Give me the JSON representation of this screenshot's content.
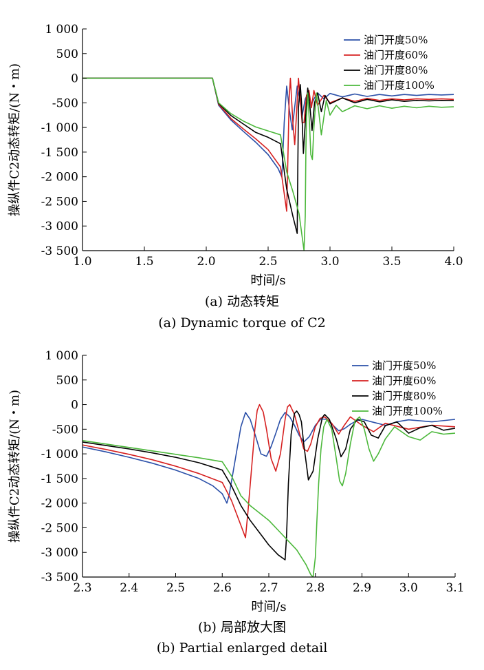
{
  "chart_data": [
    {
      "type": "line",
      "xlabel": "时间/s",
      "ylabel": "操纵件C2动态转矩/(N・m)",
      "caption_cn": "(a) 动态转矩",
      "caption_en": "(a) Dynamic torque of C2",
      "xlim": [
        1.0,
        4.0
      ],
      "ylim": [
        -3500,
        1000
      ],
      "x_ticks": [
        1.0,
        1.5,
        2.0,
        2.5,
        3.0,
        3.5,
        4.0
      ],
      "x_tick_labels": [
        "1.0",
        "1.5",
        "2.0",
        "2.5",
        "3.0",
        "3.5",
        "4.0"
      ],
      "y_ticks": [
        1000,
        500,
        0,
        -500,
        -1000,
        -1500,
        -2000,
        -2500,
        -3000,
        -3500
      ],
      "y_tick_labels": [
        "1 000",
        "500",
        "0",
        "-500",
        "-1 000",
        "-1 500",
        "-2 000",
        "-2 500",
        "-3 000",
        "-3 500"
      ],
      "grid": false,
      "legend_position": "top-right",
      "series": [
        {
          "name": "油门开度50%",
          "color": "#2a4fa8",
          "x": [
            1.0,
            2.05,
            2.1,
            2.2,
            2.3,
            2.4,
            2.5,
            2.58,
            2.61,
            2.615,
            2.63,
            2.65,
            2.672,
            2.695,
            2.715,
            2.735,
            2.755,
            2.775,
            2.8,
            2.825,
            2.85,
            2.875,
            2.9,
            2.95,
            3.0,
            3.1,
            3.2,
            3.3,
            3.4,
            3.5,
            3.6,
            3.7,
            3.8,
            3.9,
            4.0
          ],
          "y": [
            0,
            0,
            -550,
            -850,
            -1080,
            -1300,
            -1550,
            -1830,
            -2000,
            -1800,
            -900,
            -160,
            -650,
            -1050,
            -580,
            -160,
            -420,
            -760,
            -420,
            -300,
            -530,
            -400,
            -300,
            -420,
            -310,
            -380,
            -320,
            -370,
            -330,
            -360,
            -330,
            -350,
            -330,
            -340,
            -330
          ]
        },
        {
          "name": "油门开度60%",
          "color": "#d62020",
          "x": [
            1.0,
            2.05,
            2.1,
            2.2,
            2.3,
            2.4,
            2.5,
            2.6,
            2.65,
            2.66,
            2.67,
            2.68,
            2.7,
            2.715,
            2.73,
            2.745,
            2.76,
            2.775,
            2.79,
            2.81,
            2.83,
            2.85,
            2.87,
            2.9,
            2.95,
            3.0,
            3.1,
            3.2,
            3.3,
            3.4,
            3.5,
            3.6,
            3.7,
            3.8,
            3.9,
            4.0
          ],
          "y": [
            0,
            0,
            -530,
            -820,
            -1030,
            -1230,
            -1450,
            -1800,
            -2700,
            -1600,
            -400,
            0,
            -900,
            -1350,
            -700,
            0,
            -450,
            -900,
            -900,
            -350,
            -250,
            -600,
            -250,
            -550,
            -350,
            -500,
            -400,
            -470,
            -410,
            -450,
            -420,
            -440,
            -420,
            -430,
            -420,
            -430
          ]
        },
        {
          "name": "油门开度80%",
          "color": "#000000",
          "x": [
            1.0,
            2.05,
            2.1,
            2.2,
            2.3,
            2.4,
            2.5,
            2.6,
            2.65,
            2.7,
            2.735,
            2.74,
            2.745,
            2.76,
            2.77,
            2.785,
            2.8,
            2.82,
            2.835,
            2.855,
            2.875,
            2.9,
            2.93,
            2.96,
            3.0,
            3.1,
            3.2,
            3.3,
            3.4,
            3.5,
            3.6,
            3.7,
            3.8,
            3.9,
            4.0
          ],
          "y": [
            0,
            0,
            -510,
            -760,
            -930,
            -1100,
            -1200,
            -1330,
            -2250,
            -2800,
            -3150,
            -1800,
            -600,
            -130,
            -500,
            -1530,
            -900,
            -200,
            -500,
            -1060,
            -500,
            -300,
            -680,
            -350,
            -520,
            -400,
            -500,
            -430,
            -480,
            -440,
            -470,
            -450,
            -460,
            -450,
            -455
          ]
        },
        {
          "name": "油门开度100%",
          "color": "#4cb83b",
          "x": [
            1.0,
            2.05,
            2.1,
            2.2,
            2.3,
            2.4,
            2.5,
            2.6,
            2.65,
            2.7,
            2.75,
            2.79,
            2.8,
            2.805,
            2.81,
            2.82,
            2.835,
            2.845,
            2.858,
            2.87,
            2.89,
            2.91,
            2.93,
            2.95,
            2.97,
            3.0,
            3.05,
            3.1,
            3.2,
            3.3,
            3.4,
            3.5,
            3.6,
            3.7,
            3.8,
            3.9,
            4.0
          ],
          "y": [
            0,
            0,
            -500,
            -720,
            -870,
            -990,
            -1070,
            -1150,
            -1900,
            -2300,
            -2750,
            -3500,
            -2800,
            -1500,
            -800,
            -300,
            -950,
            -1550,
            -1650,
            -1000,
            -300,
            -700,
            -1150,
            -800,
            -450,
            -750,
            -550,
            -680,
            -560,
            -620,
            -560,
            -610,
            -570,
            -600,
            -570,
            -590,
            -580
          ]
        }
      ]
    },
    {
      "type": "line",
      "xlabel": "时间/s",
      "ylabel": "操纵件C2动态转矩/(N・m)",
      "caption_cn": "(b) 局部放大图",
      "caption_en": "(b) Partial enlarged detail",
      "xlim": [
        2.3,
        3.1
      ],
      "ylim": [
        -3500,
        1000
      ],
      "x_ticks": [
        2.3,
        2.4,
        2.5,
        2.6,
        2.7,
        2.8,
        2.9,
        3.0,
        3.1
      ],
      "x_tick_labels": [
        "2.3",
        "2.4",
        "2.5",
        "2.6",
        "2.7",
        "2.8",
        "2.9",
        "3.0",
        "3.1"
      ],
      "y_ticks": [
        1000,
        500,
        0,
        -500,
        -1000,
        -1500,
        -2000,
        -2500,
        -3000,
        -3500
      ],
      "y_tick_labels": [
        "1 000",
        "500",
        "0",
        "-500",
        "-1 000",
        "-1 500",
        "-2 000",
        "-2 500",
        "-3 000",
        "-3 500"
      ],
      "grid": false,
      "legend_position": "top-right",
      "series": [
        {
          "name": "油门开度50%",
          "color": "#2a4fa8",
          "x": [
            2.3,
            2.35,
            2.4,
            2.45,
            2.5,
            2.55,
            2.58,
            2.6,
            2.61,
            2.615,
            2.63,
            2.64,
            2.65,
            2.66,
            2.672,
            2.683,
            2.695,
            2.705,
            2.715,
            2.725,
            2.735,
            2.745,
            2.755,
            2.765,
            2.775,
            2.787,
            2.8,
            2.812,
            2.825,
            2.84,
            2.85,
            2.862,
            2.875,
            2.888,
            2.9,
            2.925,
            2.95,
            2.975,
            3.0,
            3.05,
            3.1
          ],
          "y": [
            -860,
            -960,
            -1070,
            -1190,
            -1330,
            -1500,
            -1650,
            -1810,
            -2000,
            -1830,
            -1000,
            -450,
            -160,
            -300,
            -650,
            -1000,
            -1050,
            -850,
            -580,
            -300,
            -160,
            -250,
            -420,
            -620,
            -760,
            -650,
            -420,
            -290,
            -300,
            -440,
            -530,
            -490,
            -400,
            -330,
            -300,
            -360,
            -420,
            -350,
            -310,
            -350,
            -300
          ]
        },
        {
          "name": "油门开度60%",
          "color": "#d62020",
          "x": [
            2.3,
            2.35,
            2.4,
            2.45,
            2.5,
            2.55,
            2.6,
            2.62,
            2.64,
            2.65,
            2.655,
            2.662,
            2.67,
            2.675,
            2.68,
            2.688,
            2.695,
            2.705,
            2.715,
            2.725,
            2.735,
            2.74,
            2.745,
            2.755,
            2.765,
            2.775,
            2.783,
            2.79,
            2.8,
            2.81,
            2.82,
            2.835,
            2.85,
            2.862,
            2.875,
            2.9,
            2.925,
            2.95,
            3.0,
            3.05,
            3.1
          ],
          "y": [
            -820,
            -910,
            -1010,
            -1120,
            -1250,
            -1400,
            -1580,
            -1950,
            -2450,
            -2700,
            -2200,
            -1400,
            -500,
            -120,
            0,
            -150,
            -500,
            -1100,
            -1350,
            -1000,
            -300,
            -50,
            0,
            -200,
            -550,
            -900,
            -950,
            -800,
            -450,
            -280,
            -250,
            -380,
            -600,
            -420,
            -250,
            -420,
            -550,
            -380,
            -500,
            -420,
            -450
          ]
        },
        {
          "name": "油门开度80%",
          "color": "#000000",
          "x": [
            2.3,
            2.35,
            2.4,
            2.45,
            2.5,
            2.55,
            2.6,
            2.62,
            2.64,
            2.66,
            2.68,
            2.7,
            2.72,
            2.735,
            2.738,
            2.742,
            2.748,
            2.755,
            2.76,
            2.765,
            2.77,
            2.775,
            2.785,
            2.795,
            2.805,
            2.815,
            2.82,
            2.83,
            2.845,
            2.855,
            2.865,
            2.875,
            2.89,
            2.905,
            2.92,
            2.935,
            2.95,
            2.975,
            3.0,
            3.025,
            3.05,
            3.075,
            3.1
          ],
          "y": [
            -760,
            -830,
            -900,
            -980,
            -1070,
            -1180,
            -1330,
            -1650,
            -2050,
            -2350,
            -2600,
            -2850,
            -3050,
            -3150,
            -2700,
            -1600,
            -600,
            -180,
            -130,
            -200,
            -350,
            -800,
            -1530,
            -1350,
            -700,
            -260,
            -200,
            -300,
            -700,
            -1060,
            -900,
            -500,
            -300,
            -350,
            -620,
            -680,
            -430,
            -350,
            -580,
            -470,
            -420,
            -520,
            -480
          ]
        },
        {
          "name": "油门开度100%",
          "color": "#4cb83b",
          "x": [
            2.3,
            2.35,
            2.4,
            2.45,
            2.5,
            2.55,
            2.6,
            2.62,
            2.64,
            2.66,
            2.68,
            2.7,
            2.72,
            2.74,
            2.76,
            2.78,
            2.79,
            2.795,
            2.8,
            2.803,
            2.807,
            2.812,
            2.818,
            2.825,
            2.835,
            2.845,
            2.852,
            2.858,
            2.865,
            2.875,
            2.885,
            2.895,
            2.905,
            2.915,
            2.925,
            2.935,
            2.95,
            2.97,
            3.0,
            3.025,
            3.05,
            3.075,
            3.1
          ],
          "y": [
            -730,
            -800,
            -870,
            -940,
            -1010,
            -1080,
            -1160,
            -1450,
            -1850,
            -2050,
            -2200,
            -2350,
            -2550,
            -2750,
            -2950,
            -3250,
            -3450,
            -3500,
            -3100,
            -2400,
            -1600,
            -900,
            -450,
            -300,
            -500,
            -1100,
            -1550,
            -1650,
            -1400,
            -800,
            -330,
            -250,
            -500,
            -900,
            -1150,
            -1000,
            -700,
            -450,
            -650,
            -720,
            -550,
            -600,
            -580
          ]
        }
      ]
    }
  ]
}
